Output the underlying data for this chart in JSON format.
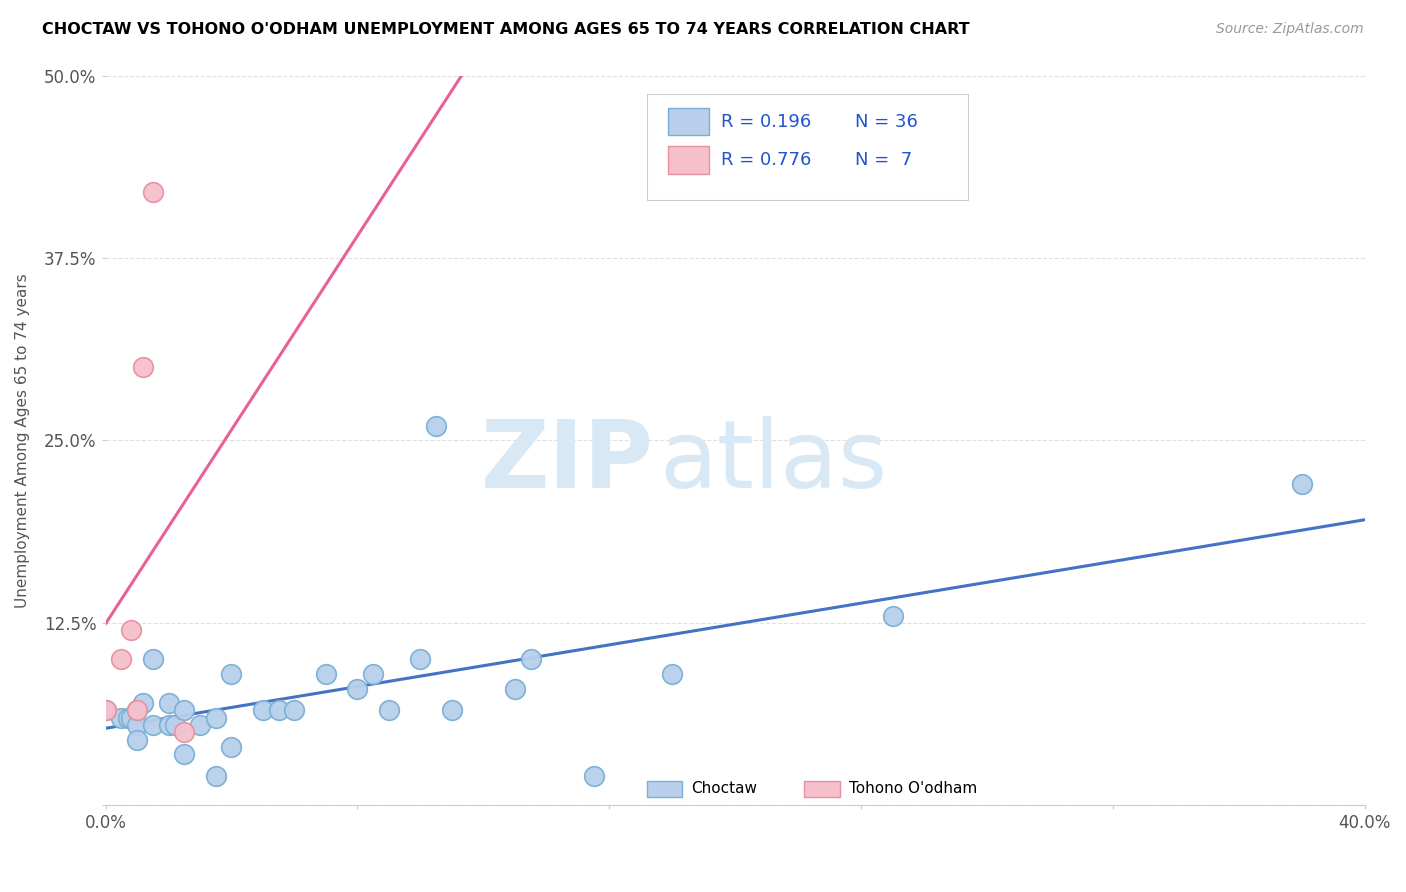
{
  "title": "CHOCTAW VS TOHONO O'ODHAM UNEMPLOYMENT AMONG AGES 65 TO 74 YEARS CORRELATION CHART",
  "source": "Source: ZipAtlas.com",
  "ylabel": "Unemployment Among Ages 65 to 74 years",
  "xlim": [
    0.0,
    0.4
  ],
  "ylim": [
    0.0,
    0.5
  ],
  "xticks": [
    0.0,
    0.08,
    0.16,
    0.24,
    0.32,
    0.4
  ],
  "yticks": [
    0.0,
    0.125,
    0.25,
    0.375,
    0.5
  ],
  "xtick_labels": [
    "0.0%",
    "",
    "",
    "",
    "",
    "40.0%"
  ],
  "ytick_labels": [
    "",
    "12.5%",
    "25.0%",
    "37.5%",
    "50.0%"
  ],
  "choctaw_x": [
    0.0,
    0.005,
    0.007,
    0.008,
    0.01,
    0.01,
    0.01,
    0.012,
    0.015,
    0.015,
    0.02,
    0.02,
    0.022,
    0.025,
    0.025,
    0.03,
    0.035,
    0.035,
    0.04,
    0.04,
    0.05,
    0.055,
    0.06,
    0.07,
    0.08,
    0.085,
    0.09,
    0.1,
    0.105,
    0.11,
    0.13,
    0.135,
    0.155,
    0.18,
    0.25,
    0.38
  ],
  "choctaw_y": [
    0.065,
    0.06,
    0.06,
    0.06,
    0.055,
    0.065,
    0.045,
    0.07,
    0.055,
    0.1,
    0.055,
    0.07,
    0.055,
    0.065,
    0.035,
    0.055,
    0.06,
    0.02,
    0.04,
    0.09,
    0.065,
    0.065,
    0.065,
    0.09,
    0.08,
    0.09,
    0.065,
    0.1,
    0.26,
    0.065,
    0.08,
    0.1,
    0.02,
    0.09,
    0.13,
    0.22
  ],
  "tohono_x": [
    0.0,
    0.005,
    0.008,
    0.01,
    0.012,
    0.015,
    0.025
  ],
  "tohono_y": [
    0.065,
    0.1,
    0.12,
    0.065,
    0.3,
    0.42,
    0.05
  ],
  "choctaw_color": "#b8d0eb",
  "choctaw_edge_color": "#7aafd4",
  "tohono_color": "#f5c0cb",
  "tohono_edge_color": "#e88fa0",
  "choctaw_R": 0.196,
  "choctaw_N": 36,
  "tohono_R": 0.776,
  "tohono_N": 7,
  "legend_color": "#2255cc",
  "trendline_choctaw_color": "#4472c4",
  "trendline_tohono_color": "#e8609a",
  "watermark_zip": "ZIP",
  "watermark_atlas": "atlas",
  "watermark_color": "#d8e8f4",
  "background_color": "#ffffff",
  "grid_color": "#e0e0e0"
}
